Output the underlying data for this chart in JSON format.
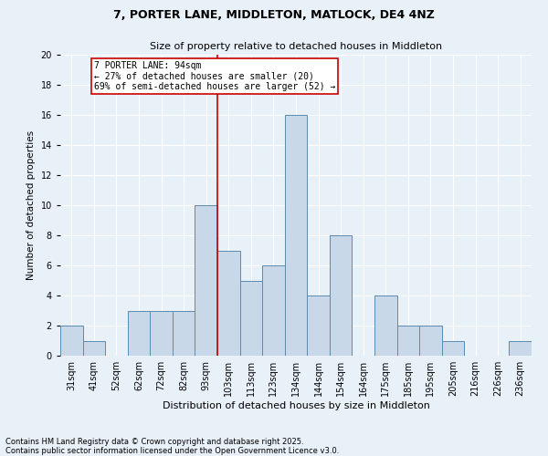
{
  "title1": "7, PORTER LANE, MIDDLETON, MATLOCK, DE4 4NZ",
  "title2": "Size of property relative to detached houses in Middleton",
  "xlabel": "Distribution of detached houses by size in Middleton",
  "ylabel": "Number of detached properties",
  "categories": [
    "31sqm",
    "41sqm",
    "52sqm",
    "62sqm",
    "72sqm",
    "82sqm",
    "93sqm",
    "103sqm",
    "113sqm",
    "123sqm",
    "134sqm",
    "144sqm",
    "154sqm",
    "164sqm",
    "175sqm",
    "185sqm",
    "195sqm",
    "205sqm",
    "216sqm",
    "226sqm",
    "236sqm"
  ],
  "values": [
    2,
    1,
    0,
    3,
    3,
    3,
    10,
    7,
    5,
    6,
    16,
    4,
    8,
    0,
    4,
    2,
    2,
    1,
    0,
    0,
    1
  ],
  "bar_color": "#c8d8e8",
  "bar_edge_color": "#5a8ab0",
  "background_color": "#e8f0f8",
  "grid_color": "#ffffff",
  "vline_x_index": 6,
  "vline_color": "#cc0000",
  "annotation_text": "7 PORTER LANE: 94sqm\n← 27% of detached houses are smaller (20)\n69% of semi-detached houses are larger (52) →",
  "annotation_box_color": "#ffffff",
  "annotation_box_edge_color": "#cc0000",
  "footer1": "Contains HM Land Registry data © Crown copyright and database right 2025.",
  "footer2": "Contains public sector information licensed under the Open Government Licence v3.0.",
  "ylim": [
    0,
    20
  ],
  "yticks": [
    0,
    2,
    4,
    6,
    8,
    10,
    12,
    14,
    16,
    18,
    20
  ],
  "title1_fontsize": 9,
  "title2_fontsize": 8,
  "xlabel_fontsize": 8,
  "ylabel_fontsize": 7.5,
  "tick_fontsize": 7,
  "annotation_fontsize": 7,
  "footer_fontsize": 6
}
